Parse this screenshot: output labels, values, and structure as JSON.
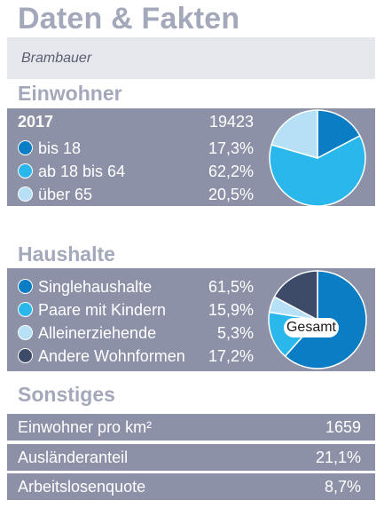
{
  "title": "Daten & Fakten",
  "location": "Brambauer",
  "einwohner": {
    "heading": "Einwohner",
    "year": "2017",
    "total": "19423",
    "rows": [
      {
        "label": "bis 18",
        "value": "17,3%",
        "color": "#0a7dc4",
        "share": 17.3
      },
      {
        "label": "ab 18 bis 64",
        "value": "62,2%",
        "color": "#2ab8ec",
        "share": 62.2
      },
      {
        "label": "über 65",
        "value": "20,5%",
        "color": "#b5e0f5",
        "share": 20.5
      }
    ]
  },
  "haushalte": {
    "heading": "Haushalte",
    "pie_center_label": "Gesamt",
    "rows": [
      {
        "label": "Singlehaushalte",
        "value": "61,5%",
        "color": "#0a7dc4",
        "share": 61.5
      },
      {
        "label": "Paare mit Kindern",
        "value": "15,9%",
        "color": "#2ab8ec",
        "share": 15.9
      },
      {
        "label": "Alleinerziehende",
        "value": "5,3%",
        "color": "#b5e0f5",
        "share": 5.3
      },
      {
        "label": "Andere Wohnformen",
        "value": "17,2%",
        "color": "#3d4a68",
        "share": 17.2
      }
    ]
  },
  "sonstiges": {
    "heading": "Sonstiges",
    "rows": [
      {
        "label": "Einwohner pro km²",
        "value": "1659"
      },
      {
        "label": "Ausländeranteil",
        "value": "21,1%"
      },
      {
        "label": "Arbeitslosenquote",
        "value": "8,7%"
      }
    ]
  }
}
